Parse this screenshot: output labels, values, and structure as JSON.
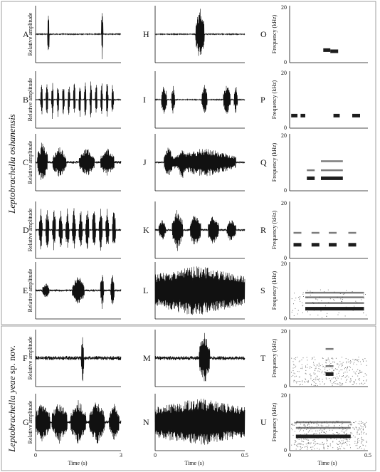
{
  "groups": [
    {
      "species": "Leptobrachella oshanensis",
      "suffix": ""
    },
    {
      "species": "Leptobrachella yeae",
      "suffix": " sp. nov."
    }
  ],
  "labels": {
    "amplitude_axis": "Relative amplitude",
    "frequency_axis": "Frequency (kHz)",
    "time_axis": "Time (s)"
  },
  "ticks": {
    "col1_time": [
      "0",
      "3"
    ],
    "col2_time": [
      "0",
      "0.5"
    ],
    "col3_time": [
      "0",
      "0.5"
    ],
    "freq": [
      "0",
      "20"
    ]
  },
  "panels": {
    "waveform_3s": [
      "A",
      "B",
      "C",
      "D",
      "E",
      "F",
      "G"
    ],
    "waveform_05s": [
      "H",
      "I",
      "J",
      "K",
      "L",
      "M",
      "N"
    ],
    "spectrogram": [
      "O",
      "P",
      "Q",
      "R",
      "S",
      "T",
      "U"
    ]
  },
  "colors": {
    "ink": "#111111",
    "frame": "#888888",
    "noise": "#777777"
  }
}
